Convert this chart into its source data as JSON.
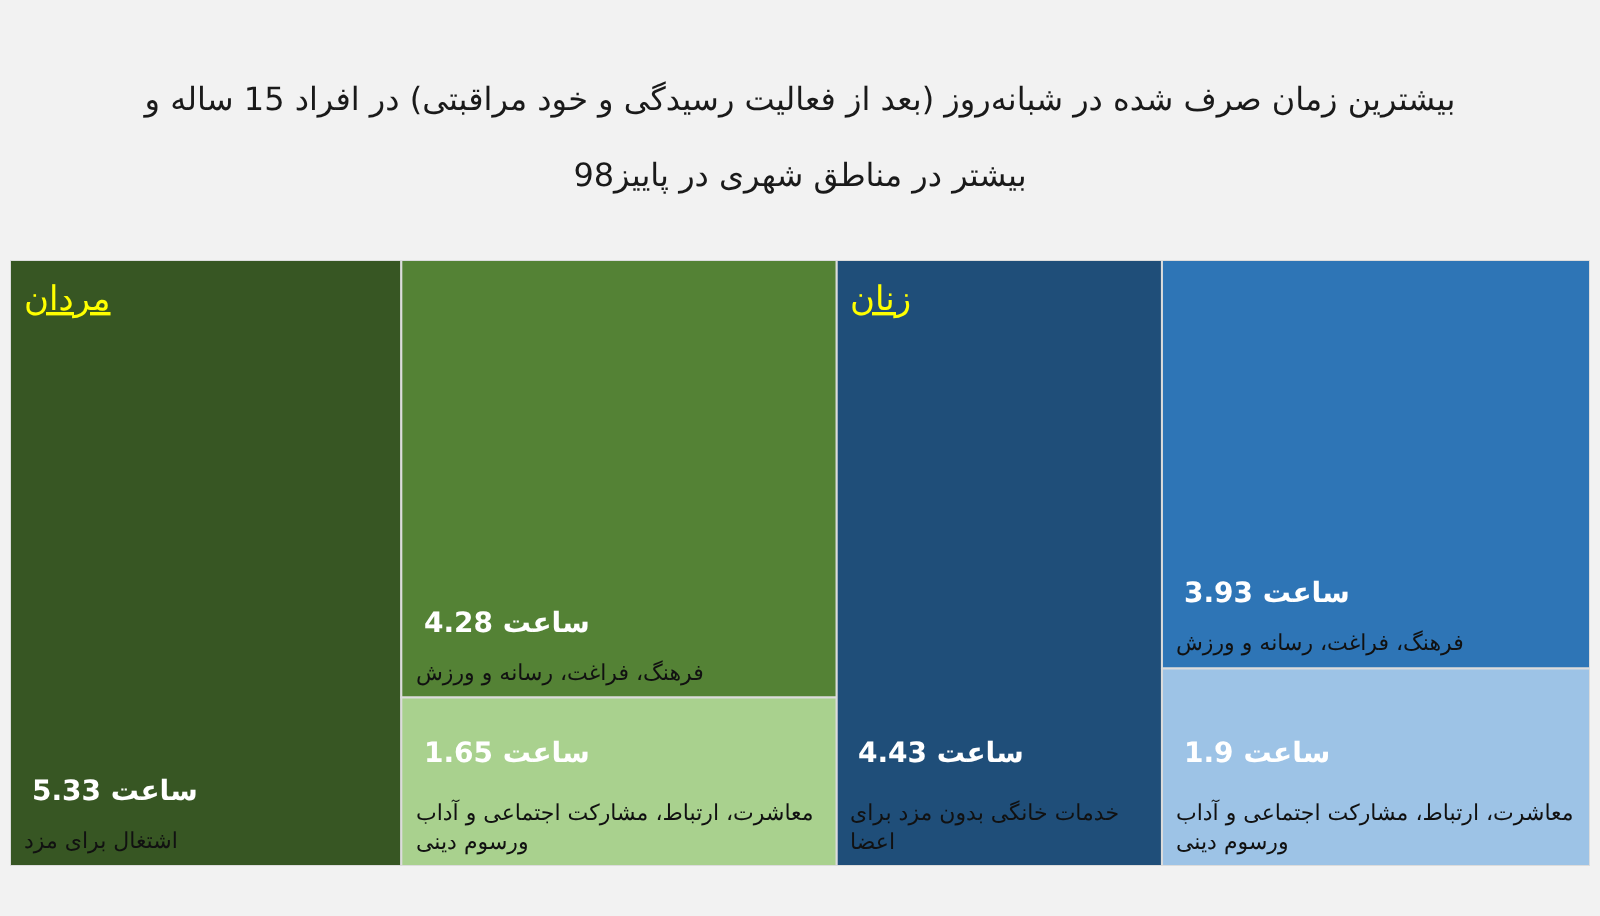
{
  "chart_data": {
    "type": "other",
    "title": "بیشترین زمان صرف شده در شبانه‌روز (بعد از فعالیت رسیدگی و خود مراقبتی) در افراد 15 ساله و بیشتر در مناطق شهری در پاییز98",
    "categories": [
      "اشتغال برای مزد",
      "خدمات خانگی بدون مزد برای اعضا",
      "فرهنگ، فراغت، رسانه و ورزش",
      "معاشرت، ارتباط، مشارکت اجتماعی و آداب ورسوم دینی"
    ],
    "series": [
      {
        "name": "مردان",
        "values": [
          5.33,
          null,
          4.28,
          1.65
        ],
        "colors": [
          "#375623",
          null,
          "#548235",
          "#a9d18e"
        ],
        "value_labels": [
          "5.33 ساعت",
          null,
          "4.28 ساعت",
          "1.65 ساعت"
        ]
      },
      {
        "name": "زنان",
        "values": [
          null,
          4.43,
          3.93,
          1.9
        ],
        "colors": [
          null,
          "#1f4e79",
          "#2e75b6",
          "#9dc3e6"
        ],
        "value_labels": [
          null,
          "4.43 ساعت",
          "3.93 ساعت",
          "1.9 ساعت"
        ]
      }
    ]
  }
}
